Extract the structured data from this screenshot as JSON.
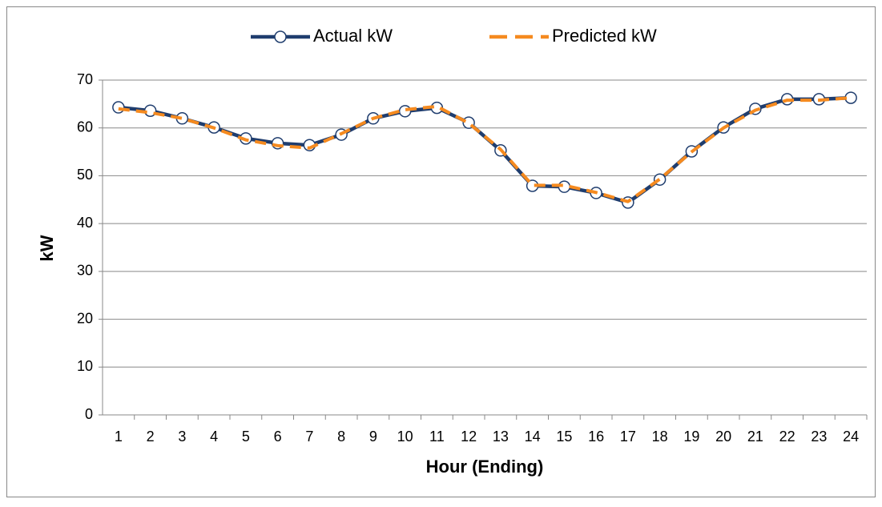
{
  "chart_data": {
    "type": "line",
    "x_label": "Hour (Ending)",
    "y_label": "kW",
    "categories": [
      "1",
      "2",
      "3",
      "4",
      "5",
      "6",
      "7",
      "8",
      "9",
      "10",
      "11",
      "12",
      "13",
      "14",
      "15",
      "16",
      "17",
      "18",
      "19",
      "20",
      "21",
      "22",
      "23",
      "24"
    ],
    "series": [
      {
        "name": "Actual kW",
        "color": "#1f3d6e",
        "style": "solid-marker",
        "values": [
          64.3,
          63.6,
          62.0,
          60.1,
          57.8,
          56.8,
          56.4,
          58.6,
          62.0,
          63.5,
          64.2,
          61.1,
          55.3,
          47.9,
          47.7,
          46.4,
          44.4,
          49.2,
          55.1,
          60.1,
          64.0,
          66.0,
          66.0,
          66.3
        ]
      },
      {
        "name": "Predicted kW",
        "color": "#f58a1f",
        "style": "dashed",
        "values": [
          64.0,
          63.2,
          62.0,
          60.0,
          57.5,
          56.3,
          55.8,
          58.8,
          62.0,
          63.8,
          64.5,
          61.0,
          55.5,
          48.0,
          48.0,
          46.5,
          44.6,
          49.3,
          55.0,
          60.0,
          63.7,
          65.8,
          65.8,
          66.3
        ]
      }
    ],
    "ylim": [
      0,
      70
    ],
    "yticks": [
      0,
      10,
      20,
      30,
      40,
      50,
      60,
      70
    ],
    "grid": true,
    "legend": "top"
  }
}
